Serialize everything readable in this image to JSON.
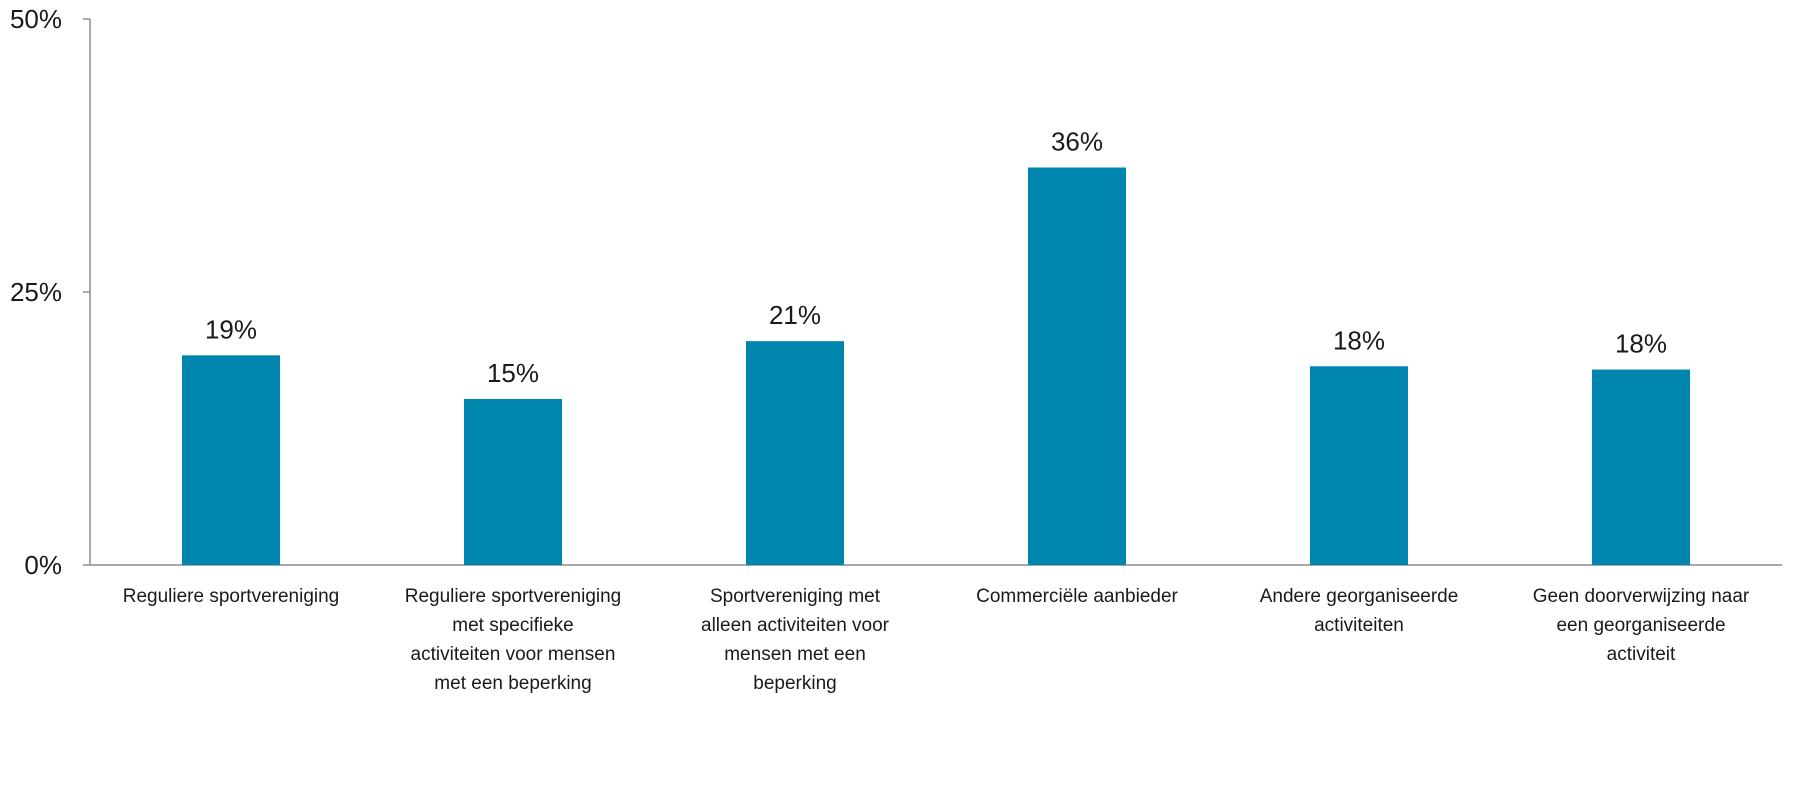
{
  "chart_data": {
    "type": "bar",
    "categories": [
      "Reguliere sportvereniging",
      "Reguliere sportvereniging met specifieke activiteiten voor mensen met een beperking",
      "Sportvereniging met alleen activiteiten voor mensen met een beperking",
      "Commerciële aanbieder",
      "Andere georganiseerde activiteiten",
      "Geen doorverwijzing naar een georganiseerde activiteit"
    ],
    "category_label_lines": [
      [
        "Reguliere sportvereniging"
      ],
      [
        "Reguliere sportvereniging",
        "met specifieke",
        "activiteiten voor mensen",
        "met een beperking"
      ],
      [
        "Sportvereniging met",
        "alleen activiteiten voor",
        "mensen met een",
        "beperking"
      ],
      [
        "Commerciële aanbieder"
      ],
      [
        "Andere georganiseerde",
        "activiteiten"
      ],
      [
        "Geen doorverwijzing naar",
        "een georganiseerde",
        "activiteit"
      ]
    ],
    "values": [
      19.2,
      15.2,
      20.5,
      36.4,
      18.2,
      17.9
    ],
    "data_labels": [
      "19%",
      "15%",
      "21%",
      "36%",
      "18%",
      "18%"
    ],
    "ylim": [
      0,
      50
    ],
    "y_ticks": [
      0,
      25,
      50
    ],
    "y_tick_labels": [
      "0%",
      "25%",
      "50%"
    ],
    "title": "",
    "xlabel": "",
    "ylabel": "",
    "grid": false,
    "colors": {
      "bar": "#0085ae",
      "axis": "#8c8c8c",
      "text": "#1a1a1a"
    }
  }
}
